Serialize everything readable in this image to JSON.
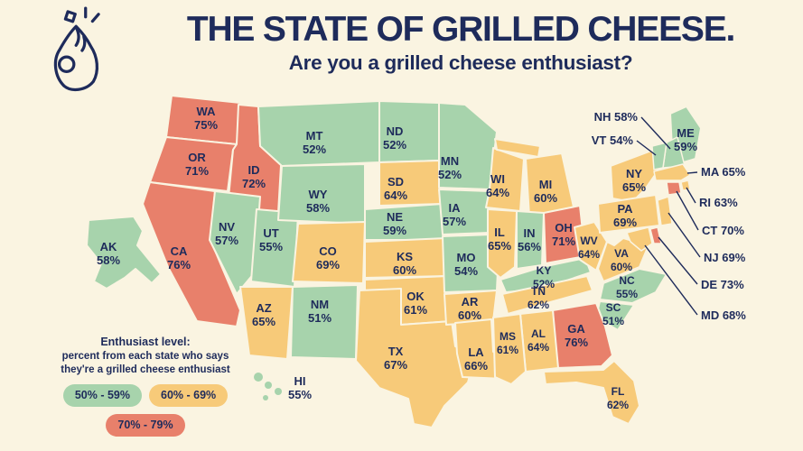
{
  "header": {
    "title": "THE STATE OF GRILLED CHEESE.",
    "subtitle": "Are you a grilled cheese enthusiast?",
    "logo_icon": "pinched-fingers-hand-icon"
  },
  "legend": {
    "title": "Enthusiast level:",
    "description_line1": "percent from each state who says",
    "description_line2": "they're a grilled cheese enthusiast",
    "ranges": [
      {
        "label": "50% - 59%",
        "level": "green",
        "color": "#A7D3AC"
      },
      {
        "label": "60% - 69%",
        "level": "yellow",
        "color": "#F7CA79"
      },
      {
        "label": "70% - 79%",
        "level": "red",
        "color": "#E8806B"
      }
    ]
  },
  "colors": {
    "green": "#A7D3AC",
    "yellow": "#F7CA79",
    "red": "#E8806B",
    "navy": "#1E2B5B",
    "background": "#FAF4E1"
  },
  "map": {
    "type": "choropleth",
    "states": [
      {
        "id": "WA",
        "value": "75%"
      },
      {
        "id": "OR",
        "value": "71%"
      },
      {
        "id": "CA",
        "value": "76%"
      },
      {
        "id": "ID",
        "value": "72%"
      },
      {
        "id": "NV",
        "value": "57%"
      },
      {
        "id": "UT",
        "value": "55%"
      },
      {
        "id": "AZ",
        "value": "65%"
      },
      {
        "id": "MT",
        "value": "52%"
      },
      {
        "id": "WY",
        "value": "58%"
      },
      {
        "id": "CO",
        "value": "69%"
      },
      {
        "id": "NM",
        "value": "51%"
      },
      {
        "id": "ND",
        "value": "52%"
      },
      {
        "id": "SD",
        "value": "64%"
      },
      {
        "id": "NE",
        "value": "59%"
      },
      {
        "id": "KS",
        "value": "60%"
      },
      {
        "id": "OK",
        "value": "61%"
      },
      {
        "id": "TX",
        "value": "67%"
      },
      {
        "id": "MN",
        "value": "52%"
      },
      {
        "id": "IA",
        "value": "57%"
      },
      {
        "id": "MO",
        "value": "54%"
      },
      {
        "id": "AR",
        "value": "60%"
      },
      {
        "id": "LA",
        "value": "66%"
      },
      {
        "id": "WI",
        "value": "64%"
      },
      {
        "id": "IL",
        "value": "65%"
      },
      {
        "id": "MI",
        "value": "60%"
      },
      {
        "id": "IN",
        "value": "56%"
      },
      {
        "id": "OH",
        "value": "71%"
      },
      {
        "id": "KY",
        "value": "52%"
      },
      {
        "id": "TN",
        "value": "62%"
      },
      {
        "id": "WV",
        "value": "64%"
      },
      {
        "id": "VA",
        "value": "60%"
      },
      {
        "id": "NC",
        "value": "55%"
      },
      {
        "id": "SC",
        "value": "51%"
      },
      {
        "id": "GA",
        "value": "76%"
      },
      {
        "id": "AL",
        "value": "64%"
      },
      {
        "id": "MS",
        "value": "61%"
      },
      {
        "id": "FL",
        "value": "62%"
      },
      {
        "id": "AK",
        "value": "58%"
      },
      {
        "id": "HI",
        "value": "55%"
      },
      {
        "id": "ME",
        "value": "59%"
      },
      {
        "id": "NY",
        "value": "65%"
      },
      {
        "id": "PA",
        "value": "69%"
      }
    ],
    "callouts": [
      {
        "id": "NH",
        "value": "58%"
      },
      {
        "id": "VT",
        "value": "54%"
      },
      {
        "id": "MA",
        "value": "65%"
      },
      {
        "id": "RI",
        "value": "63%"
      },
      {
        "id": "CT",
        "value": "70%"
      },
      {
        "id": "NJ",
        "value": "69%"
      },
      {
        "id": "DE",
        "value": "73%"
      },
      {
        "id": "MD",
        "value": "68%"
      }
    ]
  }
}
